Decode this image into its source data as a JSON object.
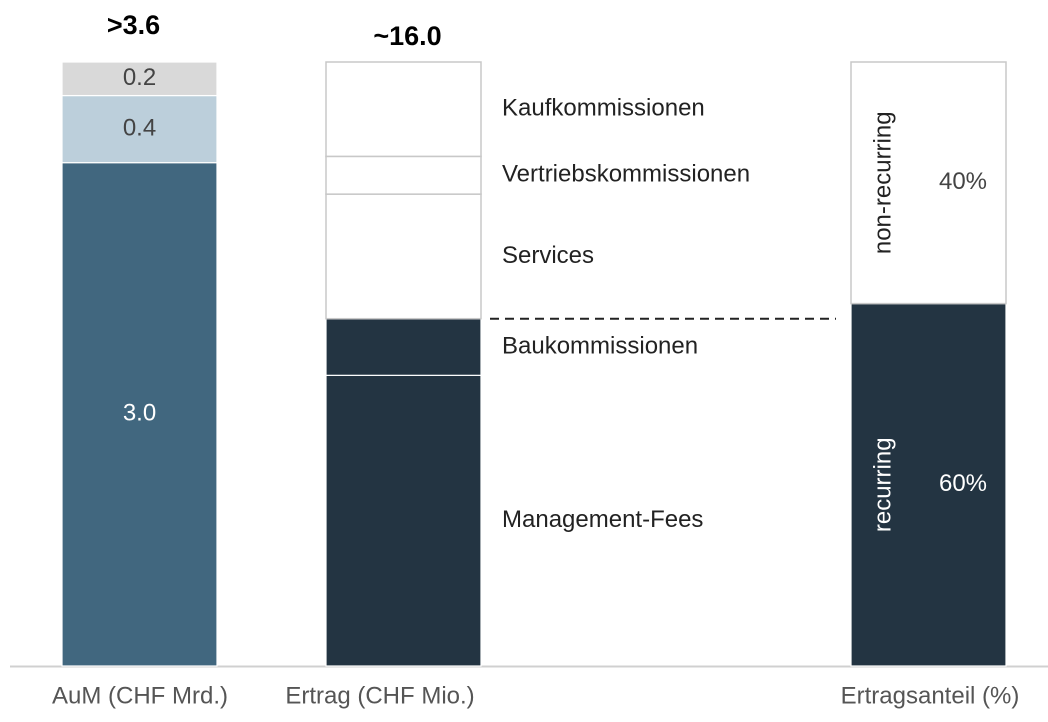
{
  "chart_data": {
    "type": "stacked_bar",
    "bars": [
      {
        "category": "AuM (CHF Mrd.)",
        "total_label": ">3.6",
        "ylim": [
          0,
          3.6
        ],
        "values": [
          3.0,
          0.4,
          0.2
        ],
        "value_labels": [
          "3.0",
          "0.4",
          "0.2"
        ],
        "colors": [
          "#41677f",
          "#bccfdb",
          "#d9d9d9"
        ]
      },
      {
        "category": "Ertrag (CHF Mio.)",
        "total_label": "~16.0",
        "ylim": [
          0,
          16
        ],
        "names": [
          "Management-Fees",
          "Baukommissionen",
          "Services",
          "Vertriebskommissionen",
          "Kaufkommissionen"
        ],
        "values": [
          7.7,
          1.5,
          3.3,
          1.0,
          2.5
        ],
        "colors": [
          "#233442",
          "#233442",
          "#ffffff",
          "#ffffff",
          "#ffffff"
        ]
      },
      {
        "category": "Ertragsanteil (%)",
        "ylim": [
          0,
          100
        ],
        "names": [
          "recurring",
          "non-recurring"
        ],
        "values": [
          60,
          40
        ],
        "value_labels": [
          "60%",
          "40%"
        ],
        "colors": [
          "#233442",
          "#ffffff"
        ]
      }
    ]
  }
}
